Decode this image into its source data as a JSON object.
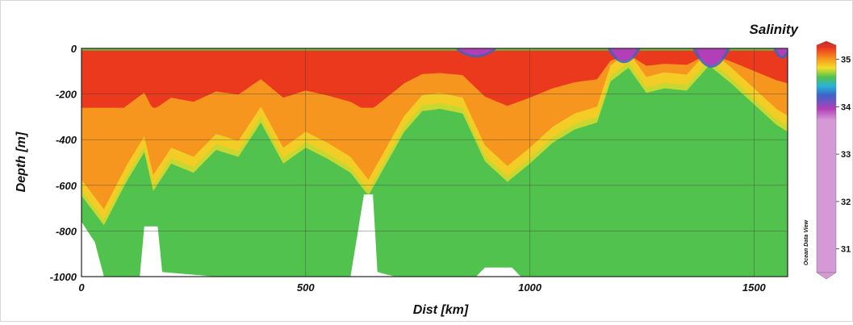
{
  "chart_data": {
    "type": "heatmap",
    "title": "Salinity",
    "xlabel": "Dist [km]",
    "ylabel": "Depth [m]",
    "watermark": "Ocean Data View",
    "xlim": [
      0,
      1575
    ],
    "ylim": [
      -1000,
      0
    ],
    "x_ticks": [
      "0",
      "500",
      "1000",
      "1500"
    ],
    "y_ticks": [
      "0",
      "-200",
      "-400",
      "-600",
      "-800",
      "-1000"
    ],
    "grid": true,
    "colorbar": {
      "ticks": [
        "35",
        "34",
        "33",
        "32",
        "31"
      ],
      "range": [
        30.5,
        35.3
      ],
      "colors": {
        "high": "#e8221d",
        "orange": "#f6961e",
        "yellow": "#f2df28",
        "green": "#52c24e",
        "cyan": "#28b4d6",
        "blue": "#3b63c7",
        "purple": "#b23fb8",
        "low": "#d59ad6"
      }
    },
    "halocline_depth_m": [
      [
        0,
        -620
      ],
      [
        50,
        -750
      ],
      [
        100,
        -560
      ],
      [
        140,
        -430
      ],
      [
        160,
        -600
      ],
      [
        200,
        -480
      ],
      [
        250,
        -520
      ],
      [
        300,
        -420
      ],
      [
        350,
        -450
      ],
      [
        400,
        -300
      ],
      [
        450,
        -480
      ],
      [
        500,
        -410
      ],
      [
        550,
        -460
      ],
      [
        600,
        -520
      ],
      [
        640,
        -620
      ],
      [
        680,
        -480
      ],
      [
        720,
        -340
      ],
      [
        760,
        -250
      ],
      [
        800,
        -240
      ],
      [
        850,
        -260
      ],
      [
        900,
        -470
      ],
      [
        950,
        -560
      ],
      [
        1000,
        -480
      ],
      [
        1050,
        -390
      ],
      [
        1100,
        -330
      ],
      [
        1150,
        -300
      ],
      [
        1180,
        -120
      ],
      [
        1220,
        -60
      ],
      [
        1260,
        -170
      ],
      [
        1300,
        -150
      ],
      [
        1350,
        -160
      ],
      [
        1400,
        -50
      ],
      [
        1450,
        -130
      ],
      [
        1500,
        -220
      ],
      [
        1550,
        -310
      ],
      [
        1575,
        -340
      ]
    ],
    "data_bottom_m": [
      [
        0,
        -760
      ],
      [
        30,
        -850
      ],
      [
        50,
        -1000
      ],
      [
        130,
        -1000
      ],
      [
        140,
        -780
      ],
      [
        170,
        -780
      ],
      [
        180,
        -980
      ],
      [
        300,
        -1000
      ],
      [
        600,
        -1000
      ],
      [
        630,
        -640
      ],
      [
        650,
        -640
      ],
      [
        660,
        -980
      ],
      [
        700,
        -1000
      ],
      [
        880,
        -1000
      ],
      [
        900,
        -960
      ],
      [
        960,
        -960
      ],
      [
        980,
        -1000
      ],
      [
        1575,
        -1000
      ]
    ],
    "surface_low_salinity_patches": [
      {
        "x": [
          840,
          920
        ],
        "depth": [
          0,
          -30
        ]
      },
      {
        "x": [
          1180,
          1240
        ],
        "depth": [
          0,
          -80
        ]
      },
      {
        "x": [
          1370,
          1440
        ],
        "depth": [
          0,
          -120
        ]
      },
      {
        "x": [
          1550,
          1575
        ],
        "depth": [
          0,
          -40
        ]
      }
    ]
  }
}
